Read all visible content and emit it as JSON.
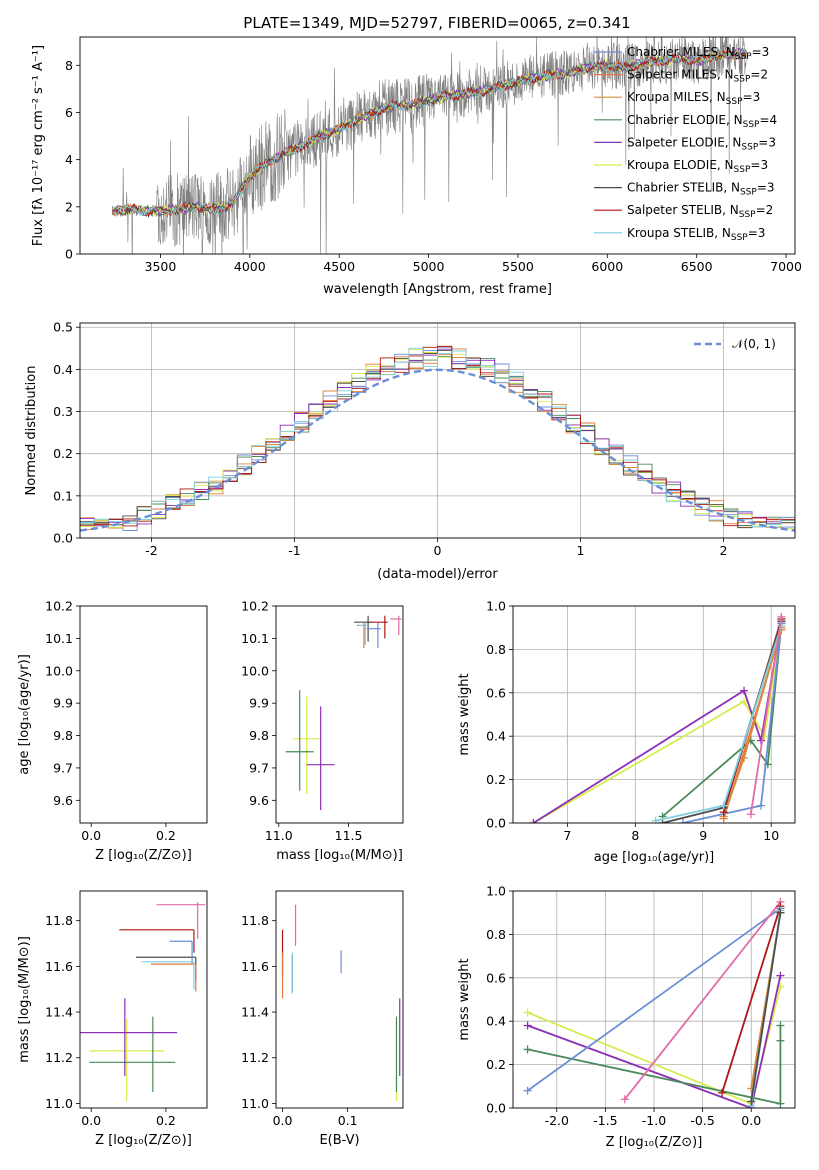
{
  "page_title": "PLATE=1349, MJD=52797, FIBERID=0065, z=0.341",
  "colors": {
    "chabrier_miles": "#6b8fd6",
    "salpeter_miles": "#e3793d",
    "kroupa_miles": "#d98a3a",
    "chabrier_elodie": "#4a8a5a",
    "salpeter_elodie": "#8b2fb8",
    "kroupa_elodie": "#d6ec4b",
    "chabrier_stelib": "#4d4d4d",
    "salpeter_stelib": "#b01515",
    "kroupa_stelib": "#7fcfe0",
    "data_spectrum": "#808080",
    "normal_curve": "#6b8fd6",
    "pink": "#e36ba8"
  },
  "chart_data": [
    {
      "id": "spectrum",
      "type": "line",
      "title": "PLATE=1349, MJD=52797, FIBERID=0065, z=0.341",
      "xlabel": "wavelength [Angstrom, rest frame]",
      "ylabel": "Flux [fλ 10⁻¹⁷ erg cm⁻² s⁻¹ A⁻¹]",
      "xlim": [
        3050,
        7050
      ],
      "ylim": [
        0,
        9.2
      ],
      "xticks": [
        3500,
        4000,
        4500,
        5000,
        5500,
        6000,
        6500,
        7000
      ],
      "yticks": [
        0,
        2,
        4,
        6,
        8
      ],
      "legend_position": "right",
      "legend": [
        "Chabrier MILES, N_SSP=3",
        "Salpeter MILES, N_SSP=2",
        "Kroupa MILES, N_SSP=3",
        "Chabrier ELODIE, N_SSP=4",
        "Salpeter ELODIE, N_SSP=3",
        "Kroupa ELODIE, N_SSP=3",
        "Chabrier STELIB, N_SSP=3",
        "Salpeter STELIB, N_SSP=2",
        "Kroupa STELIB, N_SSP=3"
      ],
      "model_continuum": {
        "x": [
          3230,
          3350,
          3450,
          3600,
          3700,
          3800,
          3900,
          4000,
          4100,
          4200,
          4300,
          4400,
          4500,
          4600,
          4700,
          4800,
          4900,
          5000,
          5100,
          5200,
          5300,
          5400,
          5500,
          5600,
          5700,
          5800,
          5900,
          6000,
          6100,
          6200,
          6300,
          6400,
          6500,
          6600,
          6750
        ],
        "y": [
          1.8,
          1.9,
          1.8,
          1.9,
          2.0,
          1.9,
          2.1,
          3.3,
          3.9,
          4.3,
          4.6,
          5.0,
          5.3,
          5.7,
          6.0,
          6.3,
          6.3,
          6.5,
          6.7,
          6.8,
          6.9,
          7.1,
          7.3,
          7.5,
          7.6,
          7.7,
          7.9,
          8.0,
          7.9,
          8.1,
          8.2,
          8.3,
          8.2,
          8.4,
          8.5
        ]
      }
    },
    {
      "id": "residuals",
      "type": "histogram",
      "xlabel": "(data-model)/error",
      "ylabel": "Normed distribution",
      "xlim": [
        -2.5,
        2.5
      ],
      "ylim": [
        0,
        0.51
      ],
      "xticks": [
        -2,
        -1,
        0,
        1,
        2
      ],
      "yticks": [
        0.0,
        0.1,
        0.2,
        0.3,
        0.4,
        0.5
      ],
      "legend": [
        "𝒩(0, 1)"
      ],
      "legend_position": "top-right",
      "grid": true
    },
    {
      "id": "age_vs_Z",
      "type": "scatter",
      "xlabel": "Z [log₁₀(Z/Z⊙)]",
      "ylabel": "age  [log₁₀(age/yr)]",
      "xlim": [
        -0.03,
        0.31
      ],
      "ylim": [
        9.53,
        10.2
      ],
      "xticks": [
        0.0,
        0.2
      ],
      "yticks": [
        9.6,
        9.7,
        9.8,
        9.9,
        10.0,
        10.1,
        10.2
      ]
    },
    {
      "id": "age_vs_mass",
      "type": "scatter",
      "xlabel": "mass [log₁₀(M/M⊙)]",
      "ylabel": "",
      "xlim": [
        10.98,
        11.89
      ],
      "ylim": [
        9.53,
        10.2
      ],
      "xticks": [
        11.0,
        11.5
      ],
      "yticks": [
        9.6,
        9.7,
        9.8,
        9.9,
        10.0,
        10.1,
        10.2
      ]
    },
    {
      "id": "weight_vs_age",
      "type": "line",
      "xlabel": "age  [log₁₀(age/yr)]",
      "ylabel": "mass weight",
      "xlim": [
        6.2,
        10.35
      ],
      "ylim": [
        0,
        1.0
      ],
      "xticks": [
        7,
        8,
        9,
        10
      ],
      "yticks": [
        0.0,
        0.2,
        0.4,
        0.6,
        0.8,
        1.0
      ],
      "grid": true
    },
    {
      "id": "mass_vs_Z",
      "type": "scatter",
      "xlabel": "Z [log₁₀(Z/Z⊙)]",
      "ylabel": "mass [log₁₀(M/M⊙)]",
      "xlim": [
        -0.03,
        0.31
      ],
      "ylim": [
        10.98,
        11.93
      ],
      "xticks": [
        0.0,
        0.2
      ],
      "yticks": [
        11.0,
        11.2,
        11.4,
        11.6,
        11.8
      ]
    },
    {
      "id": "mass_vs_ebv",
      "type": "scatter",
      "xlabel": "E(B-V)",
      "ylabel": "",
      "xlim": [
        -0.01,
        0.185
      ],
      "ylim": [
        10.98,
        11.93
      ],
      "xticks": [
        0.0,
        0.1
      ],
      "yticks": [
        11.0,
        11.2,
        11.4,
        11.6,
        11.8
      ]
    },
    {
      "id": "weight_vs_Z",
      "type": "line",
      "xlabel": "Z [log₁₀(Z/Z⊙)]",
      "ylabel": "mass weight",
      "xlim": [
        -2.45,
        0.45
      ],
      "ylim": [
        0,
        1.0
      ],
      "xticks": [
        -2.0,
        -1.5,
        -1.0,
        -0.5,
        0.0
      ],
      "yticks": [
        0.0,
        0.2,
        0.4,
        0.6,
        0.8,
        1.0
      ],
      "grid": true
    }
  ]
}
